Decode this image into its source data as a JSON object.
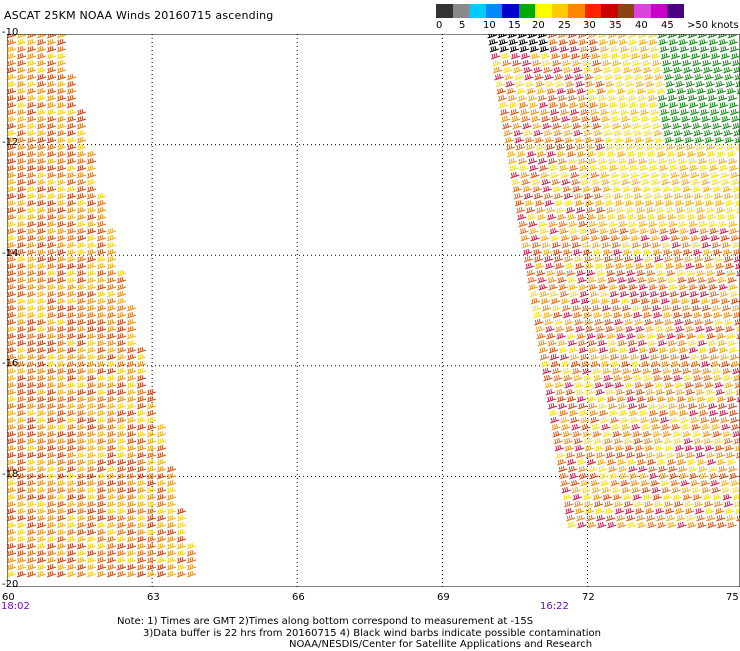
{
  "title": "ASCAT 25KM NOAA Winds 20160715 ascending",
  "colorbar": {
    "colors": [
      "#333333",
      "#8a8a8a",
      "#00ccff",
      "#0088ff",
      "#0000cc",
      "#00aa00",
      "#ffff00",
      "#ffcc00",
      "#ff8800",
      "#ff2200",
      "#cc0000",
      "#8b4513",
      "#dd44dd",
      "#cc00cc",
      "#4b0082"
    ],
    "labels": [
      "0",
      "5",
      "10",
      "15",
      "20",
      "25",
      "30",
      "35",
      "40",
      "45",
      ">50 knots"
    ]
  },
  "axes": {
    "lat_labels": [
      "-10",
      "-12",
      "-14",
      "-16",
      "-18",
      "-20"
    ],
    "lon_labels": [
      "60",
      "63",
      "66",
      "69",
      "72",
      "75"
    ]
  },
  "times": [
    "18:02",
    "16:22"
  ],
  "notes": [
    "Note: 1) Times are GMT 2)Times along bottom correspond to measurement at -15S",
    "3)Data buffer is 22 hrs from 20160715 4) Black wind barbs indicate possible contamination",
    "NOAA/NESDIS/Center for Satellite Applications and Research"
  ]
}
